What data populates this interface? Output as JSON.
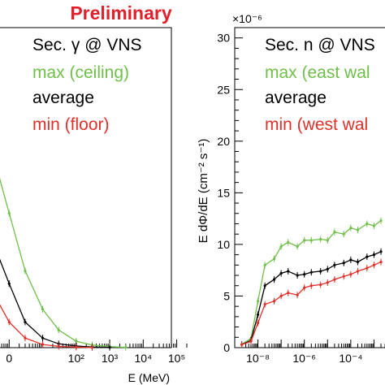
{
  "header": {
    "banner": "Preliminary"
  },
  "colors": {
    "banner": "#e0202a",
    "max": "#6fbf4a",
    "average": "#000000",
    "min": "#e0302a"
  },
  "chart_data": [
    {
      "type": "line",
      "title": "",
      "xlabel": "E (MeV)",
      "ylabel": "",
      "x_scale": "log",
      "xlim": [
        0.1,
        200000
      ],
      "ylim": [
        0,
        1
      ],
      "grid": false,
      "legend_position": "top-right",
      "x_tick_labels": [
        {
          "value": 1,
          "label": "0"
        },
        {
          "value": 100,
          "label": "10²"
        },
        {
          "value": 1000,
          "label": "10³"
        },
        {
          "value": 10000,
          "label": "10⁴"
        },
        {
          "value": 100000,
          "label": "10⁵"
        }
      ],
      "legend_title": "Sec. γ @ VNS",
      "series": [
        {
          "name": "max (ceiling)",
          "color_key": "max",
          "x": [
            0.3,
            1,
            3,
            10,
            30,
            100,
            300,
            1000,
            3000
          ],
          "y": [
            0.62,
            0.42,
            0.24,
            0.12,
            0.055,
            0.02,
            0.008,
            0.003,
            0.001
          ]
        },
        {
          "name": "average",
          "color_key": "average",
          "x": [
            0.3,
            1,
            3,
            10,
            30,
            100,
            300,
            1000
          ],
          "y": [
            0.34,
            0.2,
            0.08,
            0.03,
            0.012,
            0.005,
            0.002,
            0.0008
          ]
        },
        {
          "name": "min (floor)",
          "color_key": "min",
          "x": [
            0.3,
            1,
            3,
            10,
            30,
            100,
            300
          ],
          "y": [
            0.18,
            0.08,
            0.03,
            0.01,
            0.004,
            0.0015,
            0.0005
          ]
        }
      ]
    },
    {
      "type": "line",
      "title": "",
      "xlabel": "",
      "ylabel": "E dΦ/dE (cm⁻² s⁻¹)",
      "y_multiplier": "×10⁻⁶",
      "x_scale": "log",
      "xlim": [
        1e-09,
        0.01
      ],
      "ylim": [
        0,
        31
      ],
      "grid": false,
      "legend_position": "top-right",
      "y_ticks": [
        0,
        5,
        10,
        15,
        20,
        25,
        30
      ],
      "x_tick_labels": [
        {
          "value": 1e-08,
          "label": "10⁻⁸"
        },
        {
          "value": 1e-06,
          "label": "10⁻⁶"
        },
        {
          "value": 0.0001,
          "label": "10⁻⁴"
        }
      ],
      "legend_title": "Sec. n @ VNS",
      "series": [
        {
          "name": "max (east wal",
          "color_key": "max",
          "x": [
            2e-09,
            5e-09,
            1e-08,
            2e-08,
            5e-08,
            1e-07,
            2e-07,
            5e-07,
            1e-06,
            2e-06,
            5e-06,
            1e-05,
            2e-05,
            5e-05,
            0.0001,
            0.0002,
            0.0005,
            0.001,
            0.002
          ],
          "y": [
            0.3,
            0.9,
            4.5,
            8.0,
            8.6,
            9.8,
            10.2,
            9.8,
            10.4,
            10.4,
            10.5,
            10.4,
            11.2,
            11.0,
            11.6,
            11.4,
            12.0,
            11.8,
            12.3
          ]
        },
        {
          "name": "average",
          "color_key": "average",
          "x": [
            2e-09,
            5e-09,
            1e-08,
            2e-08,
            5e-08,
            1e-07,
            2e-07,
            5e-07,
            1e-06,
            2e-06,
            5e-06,
            1e-05,
            2e-05,
            5e-05,
            0.0001,
            0.0002,
            0.0005,
            0.001,
            0.002
          ],
          "y": [
            0.3,
            0.7,
            3.2,
            6.0,
            6.6,
            7.2,
            7.4,
            7.0,
            7.1,
            7.3,
            7.4,
            7.6,
            8.0,
            8.2,
            8.5,
            8.3,
            8.8,
            9.0,
            9.3
          ]
        },
        {
          "name": "min (west wal",
          "color_key": "min",
          "x": [
            2e-09,
            5e-09,
            1e-08,
            2e-08,
            5e-08,
            1e-07,
            2e-07,
            5e-07,
            1e-06,
            2e-06,
            5e-06,
            1e-05,
            2e-05,
            5e-05,
            0.0001,
            0.0002,
            0.0005,
            0.001,
            0.002
          ],
          "y": [
            0.3,
            0.6,
            2.4,
            4.2,
            4.5,
            5.0,
            5.3,
            5.1,
            5.8,
            6.0,
            6.1,
            6.3,
            6.6,
            6.9,
            7.1,
            7.4,
            7.7,
            8.0,
            8.3
          ]
        }
      ]
    }
  ]
}
